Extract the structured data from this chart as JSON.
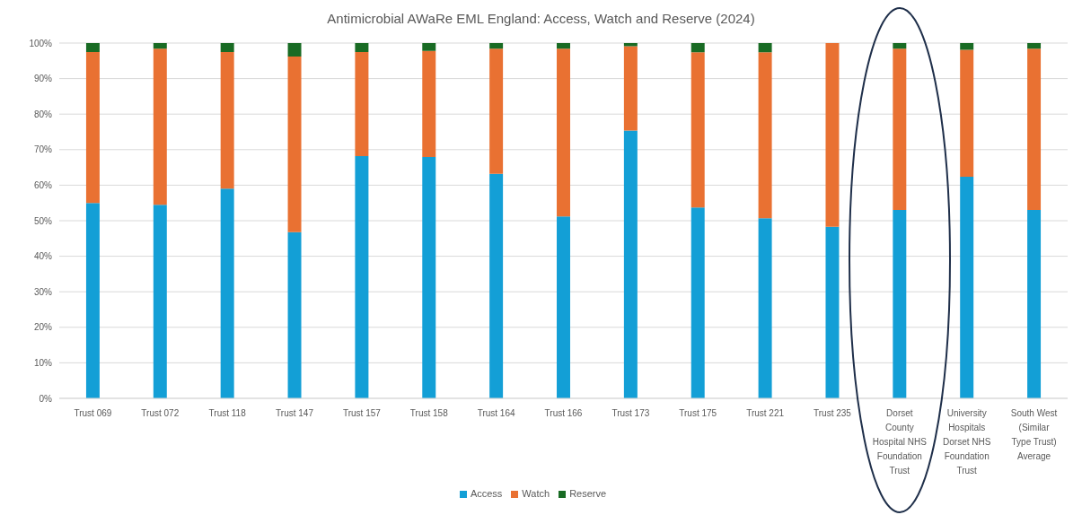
{
  "chart_data": {
    "type": "bar",
    "title": "Antimicrobial AWaRe EML England: Access, Watch and Reserve (2024)",
    "categories": [
      "Trust 069",
      "Trust 072",
      "Trust 118",
      "Trust 147",
      "Trust 157",
      "Trust 158",
      "Trust 164",
      "Trust 166",
      "Trust 173",
      "Trust 175",
      "Trust 221",
      "Trust 235",
      "Dorset County Hospital NHS Foundation Trust",
      "University Hospitals Dorset NHS Foundation Trust",
      "South West (Similar Type Trust) Average"
    ],
    "stacked": true,
    "series": [
      {
        "name": "Access",
        "color": "#139fd6",
        "values": [
          55.0,
          54.5,
          59.0,
          46.8,
          68.2,
          67.9,
          63.2,
          51.2,
          75.4,
          53.7,
          50.7,
          48.3,
          53.0,
          62.4,
          53.0
        ]
      },
      {
        "name": "Watch",
        "color": "#e97132",
        "values": [
          42.5,
          43.9,
          38.5,
          49.4,
          29.3,
          29.9,
          35.2,
          47.2,
          23.7,
          43.7,
          46.7,
          51.7,
          45.4,
          35.7,
          45.4
        ]
      },
      {
        "name": "Reserve",
        "color": "#196b24",
        "values": [
          2.5,
          1.6,
          2.5,
          3.8,
          2.5,
          2.2,
          1.6,
          1.6,
          0.9,
          2.6,
          2.6,
          0,
          1.6,
          1.9,
          1.6
        ]
      }
    ],
    "ylim": [
      0,
      100
    ],
    "yticks": [
      {
        "value": 0,
        "label": "0%"
      },
      {
        "value": 10,
        "label": "10%"
      },
      {
        "value": 20,
        "label": "20%"
      },
      {
        "value": 30,
        "label": "30%"
      },
      {
        "value": 40,
        "label": "40%"
      },
      {
        "value": 50,
        "label": "50%"
      },
      {
        "value": 60,
        "label": "60%"
      },
      {
        "value": 70,
        "label": "70%"
      },
      {
        "value": 80,
        "label": "80%"
      },
      {
        "value": 90,
        "label": "90%"
      },
      {
        "value": 100,
        "label": "100%"
      }
    ],
    "grid": "y",
    "legend": "bottom"
  }
}
